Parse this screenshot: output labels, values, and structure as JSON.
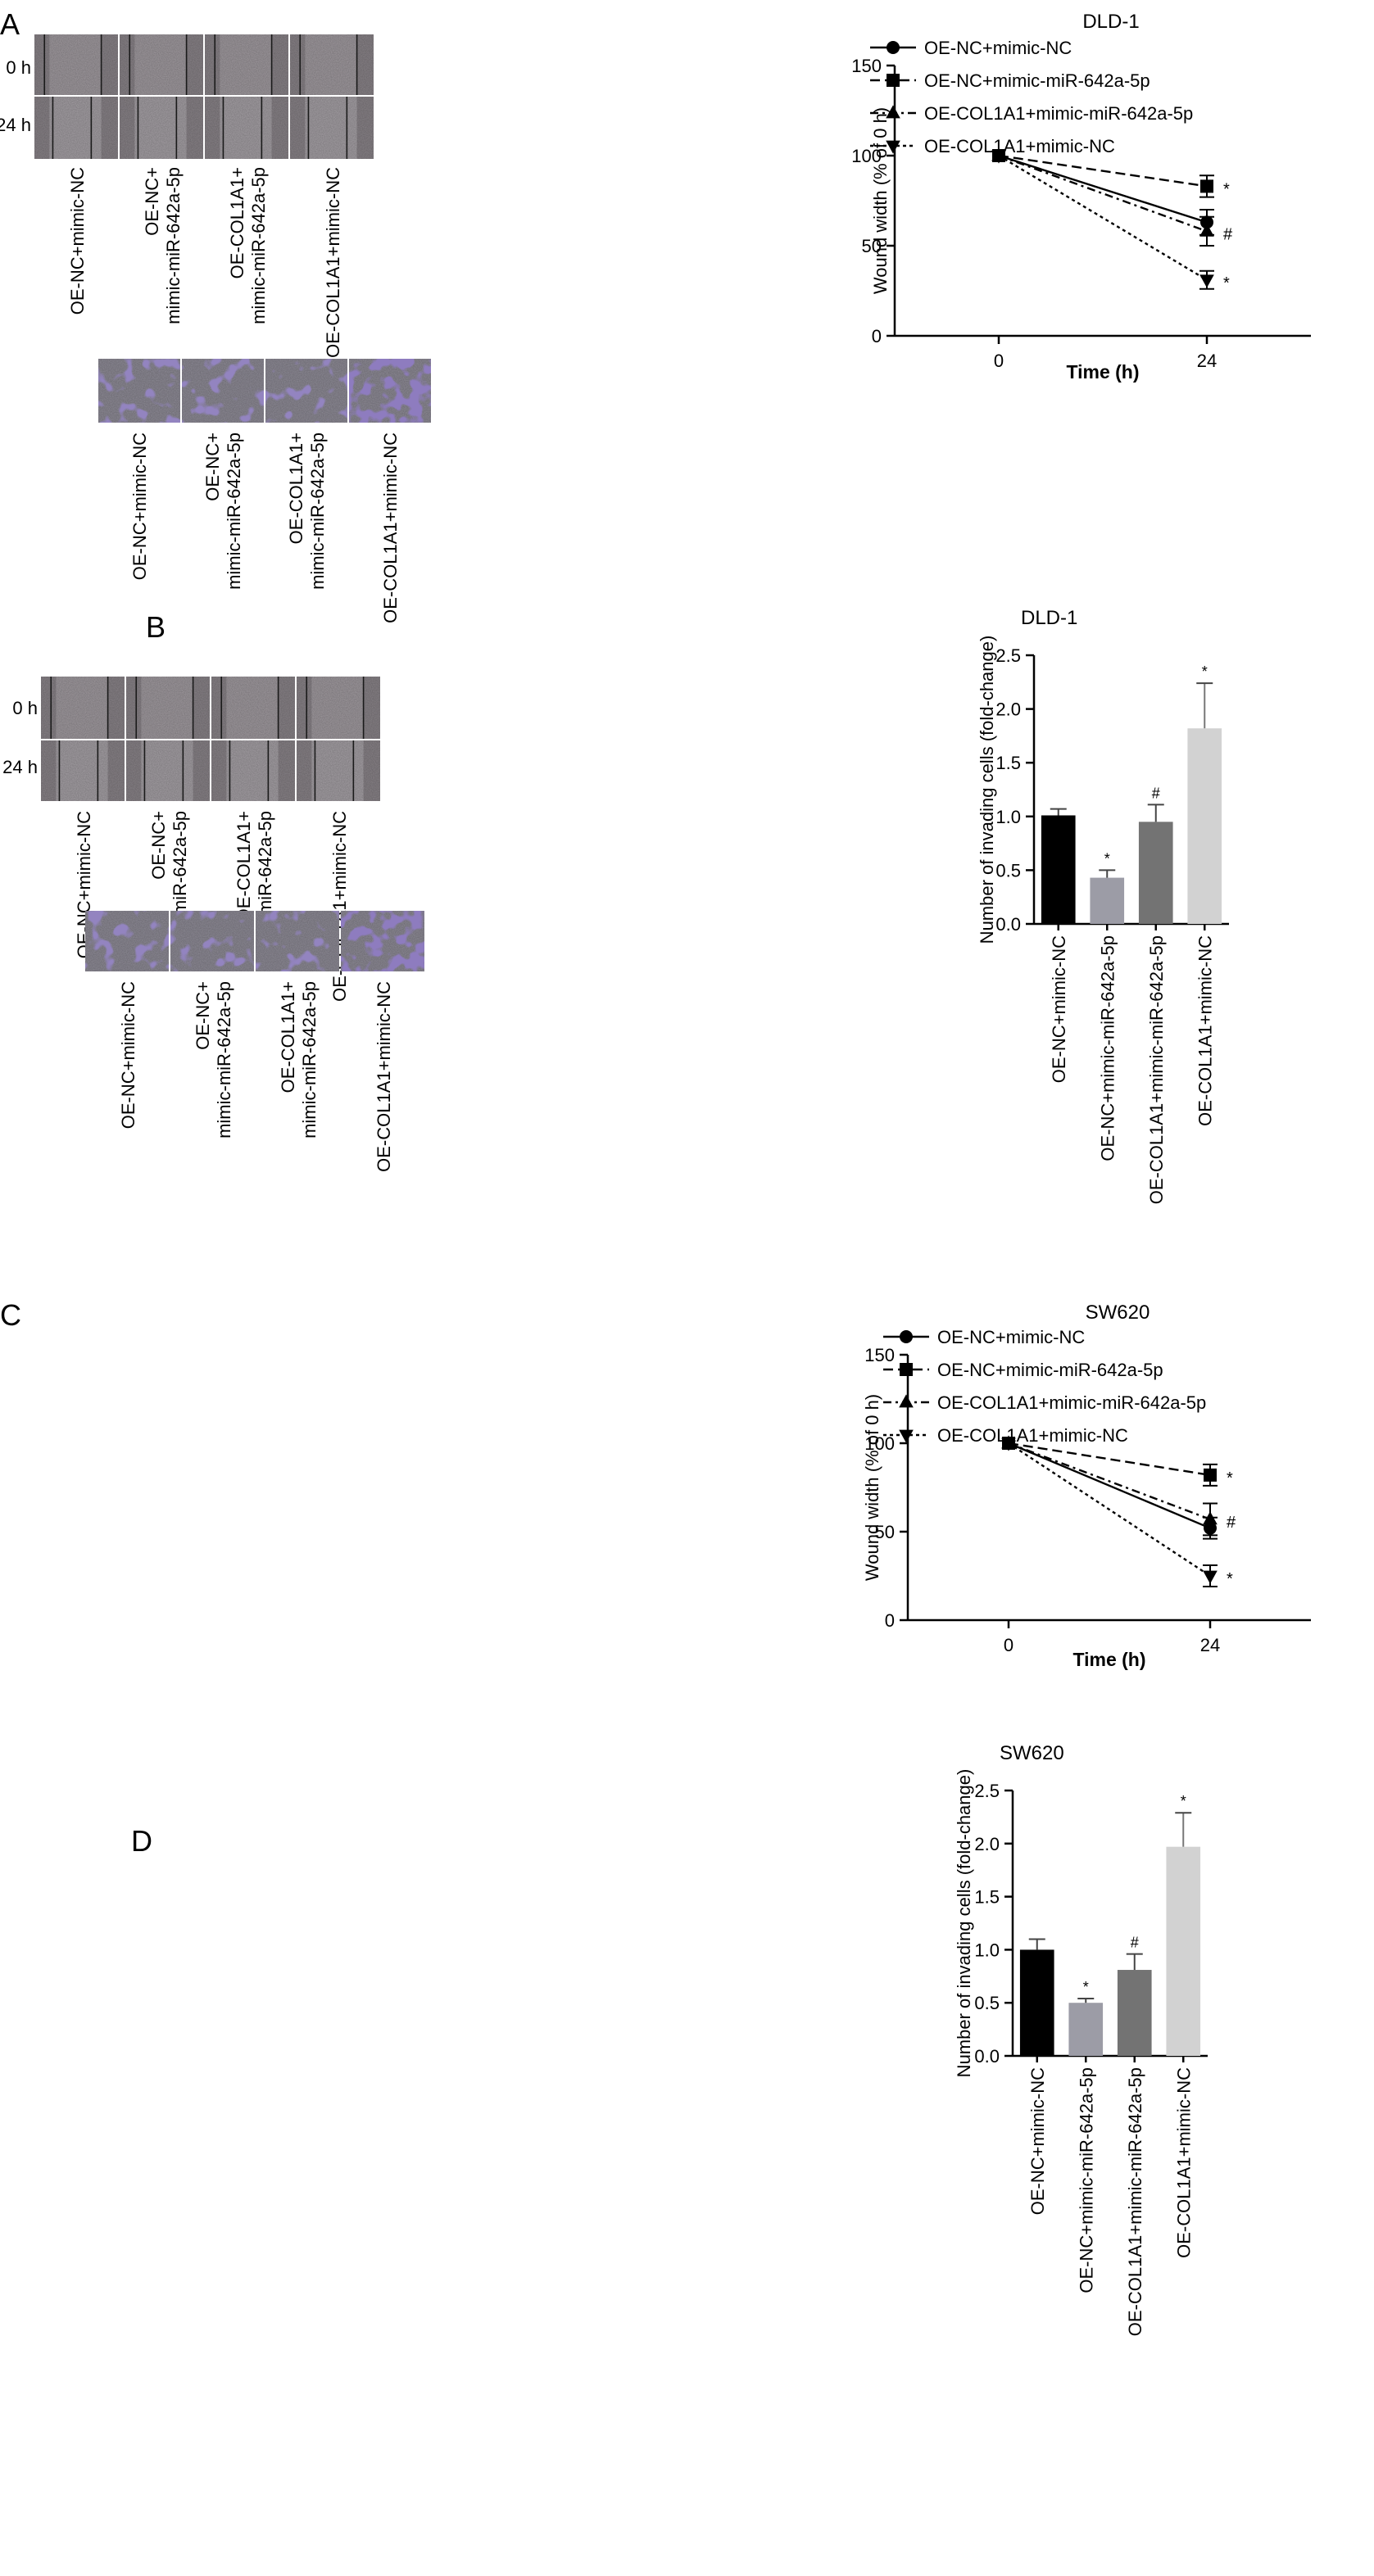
{
  "panels": [
    {
      "letter": "A",
      "kind": "wound",
      "micrograph": {
        "row_labels": [
          "0 h",
          "24 h"
        ],
        "columns": [
          "OE-NC+mimic-NC",
          "OE-NC+\nmimic-miR-642a-5p",
          "OE-COL1A1+\nmimic-miR-642a-5p",
          "OE-COL1A1+mimic-NC"
        ]
      }
    },
    {
      "letter": "B",
      "kind": "invasion",
      "micrograph": {
        "row_labels": [],
        "columns": [
          "OE-NC+mimic-NC",
          "OE-NC+\nmimic-miR-642a-5p",
          "OE-COL1A1+\nmimic-miR-642a-5p",
          "OE-COL1A1+mimic-NC"
        ]
      }
    },
    {
      "letter": "C",
      "kind": "wound",
      "micrograph": {
        "row_labels": [
          "0 h",
          "24 h"
        ],
        "columns": [
          "OE-NC+mimic-NC",
          "OE-NC+\nmimic-miR-642a-5p",
          "OE-COL1A1+\nmimic-miR-642a-5p",
          "OE-COL1A1+mimic-NC"
        ]
      }
    },
    {
      "letter": "D",
      "kind": "invasion",
      "micrograph": {
        "row_labels": [],
        "columns": [
          "OE-NC+mimic-NC",
          "OE-NC+\nmimic-miR-642a-5p",
          "OE-COL1A1+\nmimic-miR-642a-5p",
          "OE-COL1A1+mimic-NC"
        ]
      }
    }
  ],
  "colors": {
    "micro_wound": "#8a8489",
    "micro_invasion": "#8f8c97",
    "cell_purple": "#4a3a86"
  },
  "chart_data": [
    {
      "type": "line",
      "title": "DLD-1",
      "xlabel": "Time (h)",
      "ylabel": "Wound width (% of 0 h)",
      "x": [
        0,
        24
      ],
      "xlim": [
        -12,
        36
      ],
      "ylim": [
        0,
        150
      ],
      "yticks": [
        0,
        50,
        100,
        150
      ],
      "legend": "top-right",
      "series": [
        {
          "name": "OE-NC+mimic-NC",
          "marker": "circle",
          "dash": "solid",
          "values": [
            100,
            63
          ],
          "err": [
            0,
            7
          ],
          "annotation": ""
        },
        {
          "name": "OE-NC+mimic-miR-642a-5p",
          "marker": "square",
          "dash": "dashed",
          "values": [
            100,
            83
          ],
          "err": [
            0,
            6
          ],
          "annotation": "*"
        },
        {
          "name": "OE-COL1A1+mimic-miR-642a-5p",
          "marker": "triangle-up",
          "dash": "dashdot",
          "values": [
            100,
            58
          ],
          "err": [
            0,
            8
          ],
          "annotation": "#"
        },
        {
          "name": "OE-COL1A1+mimic-NC",
          "marker": "triangle-down",
          "dash": "dotted",
          "values": [
            100,
            31
          ],
          "err": [
            0,
            5
          ],
          "annotation": "*"
        }
      ]
    },
    {
      "type": "bar",
      "title": "DLD-1",
      "xlabel": "",
      "ylabel": "Number of invading cells (fold-change)",
      "categories": [
        "OE-NC+mimic-NC",
        "OE-NC+mimic-miR-642a-5p",
        "OE-COL1A1+mimic-miR-642a-5p",
        "OE-COL1A1+mimic-NC"
      ],
      "values": [
        1.01,
        0.43,
        0.95,
        1.82
      ],
      "err": [
        0.06,
        0.07,
        0.16,
        0.42
      ],
      "annotations": [
        "",
        "*",
        "#",
        "*"
      ],
      "bar_colors": [
        "#000000",
        "#9c9ca6",
        "#737373",
        "#d2d2d2"
      ],
      "ylim": [
        0,
        2.5
      ],
      "yticks": [
        0,
        0.5,
        1.0,
        1.5,
        2.0,
        2.5
      ]
    },
    {
      "type": "line",
      "title": "SW620",
      "xlabel": "Time (h)",
      "ylabel": "Wound width (% of 0 h)",
      "x": [
        0,
        24
      ],
      "xlim": [
        -12,
        36
      ],
      "ylim": [
        0,
        150
      ],
      "yticks": [
        0,
        50,
        100,
        150
      ],
      "legend": "top-right",
      "series": [
        {
          "name": "OE-NC+mimic-NC",
          "marker": "circle",
          "dash": "solid",
          "values": [
            100,
            52
          ],
          "err": [
            0,
            6
          ],
          "annotation": ""
        },
        {
          "name": "OE-NC+mimic-miR-642a-5p",
          "marker": "square",
          "dash": "dashed",
          "values": [
            100,
            82
          ],
          "err": [
            0,
            6
          ],
          "annotation": "*"
        },
        {
          "name": "OE-COL1A1+mimic-miR-642a-5p",
          "marker": "triangle-up",
          "dash": "dashdot",
          "values": [
            100,
            57
          ],
          "err": [
            0,
            9
          ],
          "annotation": "#"
        },
        {
          "name": "OE-COL1A1+mimic-NC",
          "marker": "triangle-down",
          "dash": "dotted",
          "values": [
            100,
            25
          ],
          "err": [
            0,
            6
          ],
          "annotation": "*"
        }
      ]
    },
    {
      "type": "bar",
      "title": "SW620",
      "xlabel": "",
      "ylabel": "Number of invading cells (fold-change)",
      "categories": [
        "OE-NC+mimic-NC",
        "OE-NC+mimic-miR-642a-5p",
        "OE-COL1A1+mimic-miR-642a-5p",
        "OE-COL1A1+mimic-NC"
      ],
      "values": [
        1.0,
        0.5,
        0.81,
        1.97
      ],
      "err": [
        0.1,
        0.04,
        0.15,
        0.32
      ],
      "annotations": [
        "",
        "*",
        "#",
        "*"
      ],
      "bar_colors": [
        "#000000",
        "#9c9ca6",
        "#737373",
        "#d2d2d2"
      ],
      "ylim": [
        0,
        2.5
      ],
      "yticks": [
        0,
        0.5,
        1.0,
        1.5,
        2.0,
        2.5
      ]
    }
  ]
}
